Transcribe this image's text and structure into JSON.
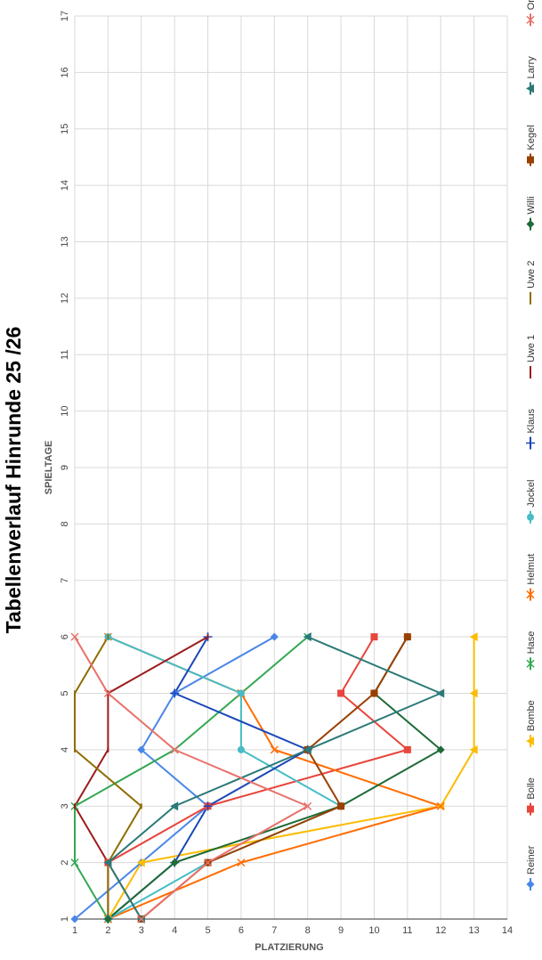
{
  "chart_data": {
    "type": "line",
    "title": "Tabellenverlauf Hinrunde 25 /26",
    "xlabel": "SPIELTAGE",
    "ylabel": "PLATZIERUNG",
    "x_ticks": [
      1,
      2,
      3,
      4,
      5,
      6,
      7,
      8,
      9,
      10,
      11,
      12,
      13,
      14,
      15,
      16,
      17
    ],
    "y_ticks": [
      1,
      2,
      3,
      4,
      5,
      6,
      7,
      8,
      9,
      10,
      11,
      12,
      13,
      14
    ],
    "xlim": [
      1,
      17
    ],
    "ylim": [
      1,
      14
    ],
    "y_inverted": true,
    "grid": true,
    "legend_position": "bottom",
    "x": [
      1,
      2,
      3,
      4,
      5,
      6
    ],
    "series": [
      {
        "name": "Reiner",
        "color": "#4a86e8",
        "marker": "diamond",
        "values": [
          1,
          3,
          5,
          3,
          4,
          7
        ]
      },
      {
        "name": "Bolle",
        "color": "#e8453c",
        "marker": "square",
        "values": [
          3,
          2,
          5,
          11,
          9,
          10
        ]
      },
      {
        "name": "Bombe",
        "color": "#fbbc04",
        "marker": "triangle",
        "values": [
          2,
          3,
          12,
          13,
          13,
          13
        ]
      },
      {
        "name": "Hase",
        "color": "#34a853",
        "marker": "x",
        "values": [
          2,
          1,
          1,
          4,
          6,
          8
        ]
      },
      {
        "name": "Helmut",
        "color": "#ff6d01",
        "marker": "x",
        "values": [
          2,
          6,
          12,
          7,
          6,
          2
        ]
      },
      {
        "name": "Jockel",
        "color": "#46bdc6",
        "marker": "circle",
        "values": [
          2,
          5,
          9,
          6,
          6,
          2
        ]
      },
      {
        "name": "Klaus",
        "color": "#1a47b8",
        "marker": "plus",
        "values": [
          2,
          4,
          5,
          8,
          4,
          5
        ]
      },
      {
        "name": "Uwe 1",
        "color": "#9c1c1c",
        "marker": "none",
        "values": [
          2,
          2,
          1,
          2,
          2,
          5
        ]
      },
      {
        "name": "Uwe 2",
        "color": "#8f6d00",
        "marker": "none",
        "values": [
          2,
          2,
          3,
          1,
          1,
          2
        ]
      },
      {
        "name": "Willi",
        "color": "#1e6b37",
        "marker": "diamond",
        "values": [
          2,
          4,
          9,
          12,
          10,
          11
        ]
      },
      {
        "name": "Kegel",
        "color": "#994000",
        "marker": "square",
        "values": [
          3,
          5,
          9,
          8,
          10,
          11
        ]
      },
      {
        "name": "Larry",
        "color": "#2a7a78",
        "marker": "triangle",
        "values": [
          3,
          2,
          4,
          8,
          12,
          8
        ]
      },
      {
        "name": "Ortwin",
        "color": "#e8716a",
        "marker": "x",
        "values": [
          3,
          5,
          8,
          4,
          2,
          1
        ]
      }
    ]
  }
}
